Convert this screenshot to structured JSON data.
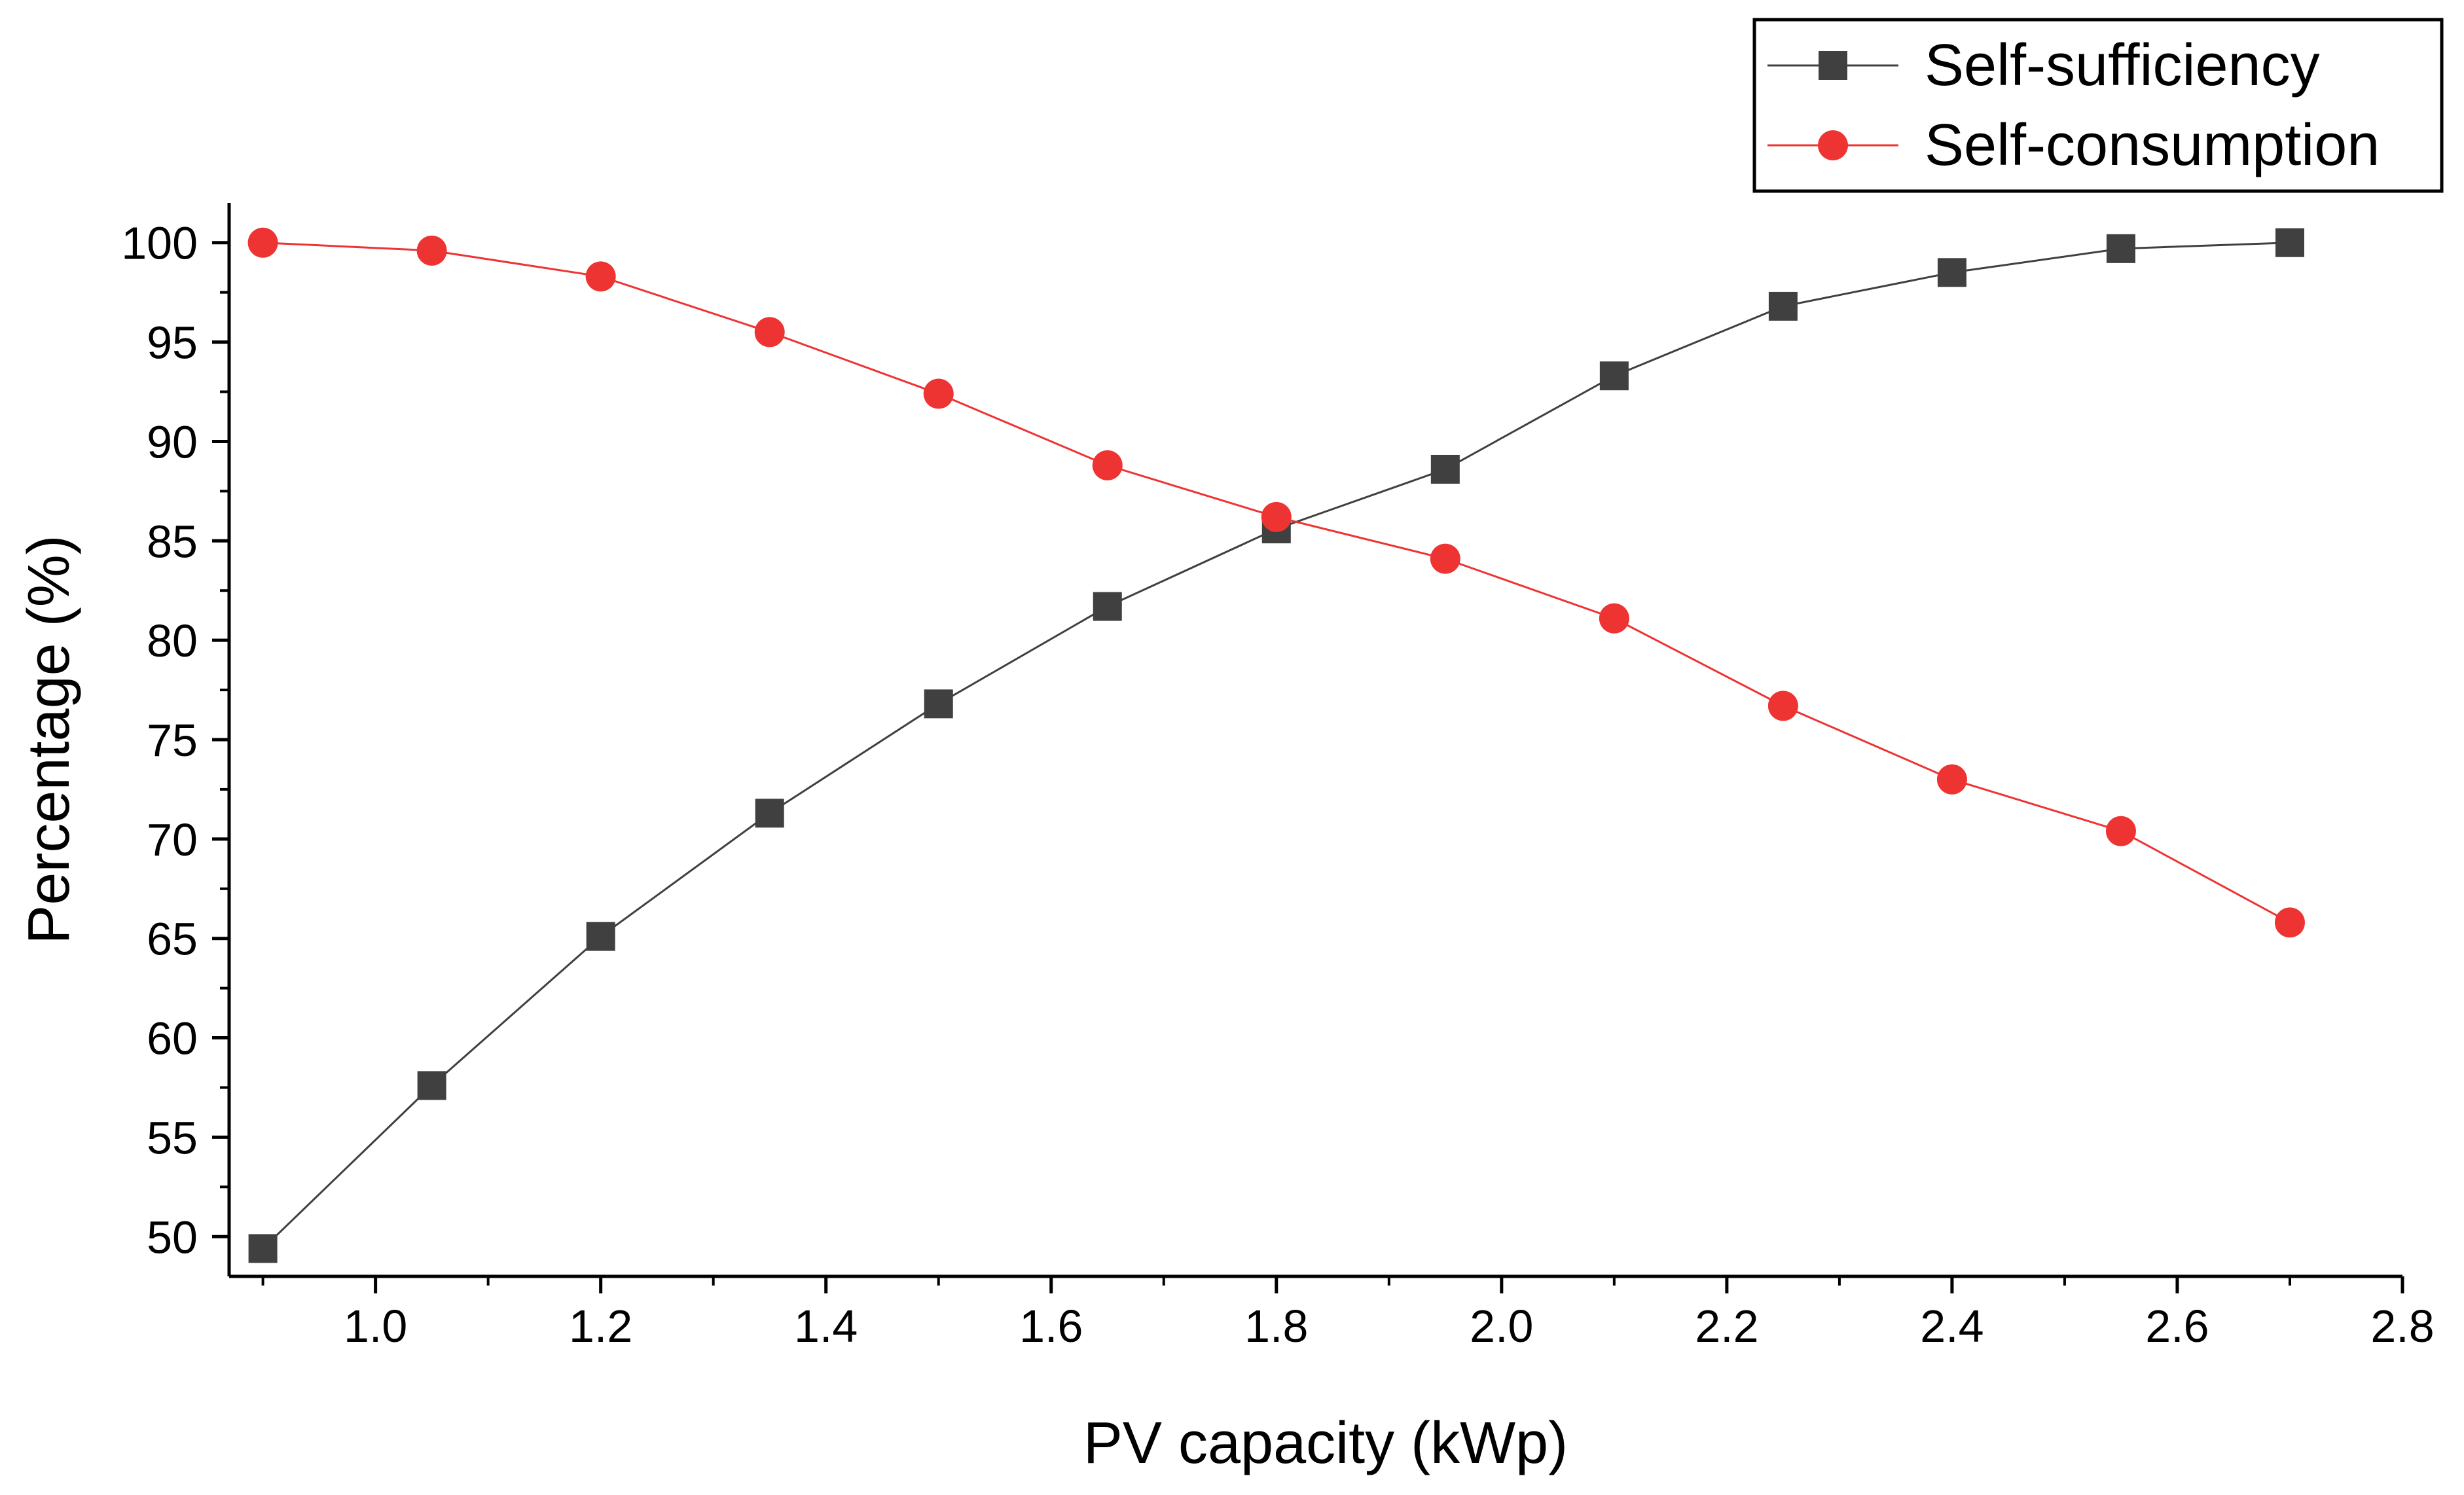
{
  "chart_data": {
    "type": "line",
    "xlabel": "PV capacity (kWp)",
    "ylabel": "Percentage (%)",
    "xlim": [
      0.87,
      2.8
    ],
    "ylim": [
      48,
      102
    ],
    "x_ticks": [
      "1.0",
      "1.2",
      "1.4",
      "1.6",
      "1.8",
      "2.0",
      "2.2",
      "2.4",
      "2.6",
      "2.8"
    ],
    "y_ticks": [
      "50",
      "55",
      "60",
      "65",
      "70",
      "75",
      "80",
      "85",
      "90",
      "95",
      "100"
    ],
    "legend_position": "top-right",
    "x": [
      0.9,
      1.05,
      1.2,
      1.35,
      1.5,
      1.65,
      1.8,
      1.95,
      2.1,
      2.25,
      2.4,
      2.55,
      2.7
    ],
    "series": [
      {
        "name": "Self-sufficiency",
        "marker": "square",
        "color": "#404040",
        "values": [
          49.4,
          57.6,
          65.1,
          71.3,
          76.8,
          81.7,
          85.6,
          88.6,
          93.3,
          96.8,
          98.5,
          99.7,
          100.0
        ]
      },
      {
        "name": "Self-consumption",
        "marker": "circle",
        "color": "#ee3333",
        "values": [
          100.0,
          99.6,
          98.3,
          95.5,
          92.4,
          88.8,
          86.2,
          84.1,
          81.1,
          76.7,
          73.0,
          70.4,
          65.8
        ]
      }
    ]
  }
}
